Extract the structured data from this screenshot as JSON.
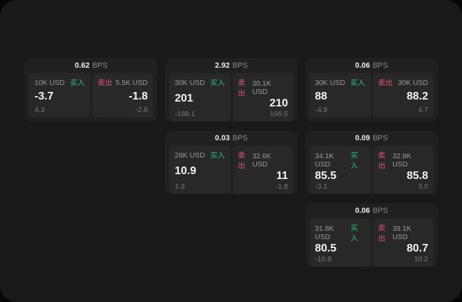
{
  "unit_label": "BPS",
  "labels": {
    "buy": "买入",
    "sell": "卖出"
  },
  "colors": {
    "buy": "#2ebd85",
    "sell": "#e0557a",
    "window_bg": "#191919",
    "card_bg": "#202020",
    "panel_bg": "#282828"
  },
  "cards": [
    {
      "bps": "0.62",
      "buy": {
        "size": "10K USD",
        "price": "-3.7",
        "delta": "4.3"
      },
      "sell": {
        "size": "5.5K USD",
        "price": "-1.8",
        "delta": "-2.6"
      }
    },
    {
      "bps": "2.92",
      "buy": {
        "size": "30K USD",
        "price": "201",
        "delta": "-188.1"
      },
      "sell": {
        "size": "30.1K USD",
        "price": "210",
        "delta": "196.5"
      }
    },
    {
      "bps": "0.06",
      "buy": {
        "size": "30K USD",
        "price": "88",
        "delta": "-4.9"
      },
      "sell": {
        "size": "30K USD",
        "price": "88.2",
        "delta": "4.7"
      }
    },
    {
      "bps": "0.03",
      "buy": {
        "size": "28K USD",
        "price": "10.9",
        "delta": "1.3"
      },
      "sell": {
        "size": "32.6K USD",
        "price": "11",
        "delta": "-1.8"
      }
    },
    {
      "bps": "0.09",
      "buy": {
        "size": "34.1K USD",
        "price": "85.5",
        "delta": "-3.1"
      },
      "sell": {
        "size": "32.8K USD",
        "price": "85.8",
        "delta": "3.0"
      }
    },
    {
      "bps": "0.06",
      "buy": {
        "size": "31.8K USD",
        "price": "80.5",
        "delta": "-10.8"
      },
      "sell": {
        "size": "39.1K USD",
        "price": "80.7",
        "delta": "10.2"
      }
    }
  ]
}
